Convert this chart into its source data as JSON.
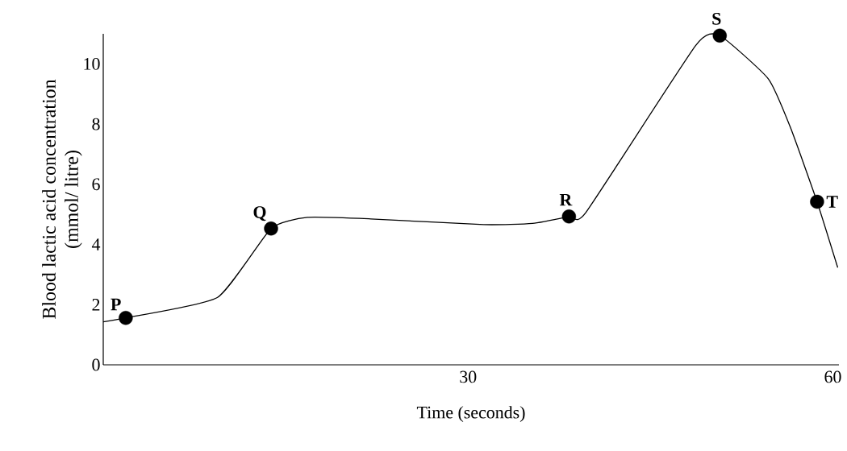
{
  "chart_data": {
    "type": "line",
    "xlabel": "Time (seconds)",
    "ylabel": "Blood lactic acid concentration (mmol/ litre)",
    "xlim": [
      0,
      60.5
    ],
    "xticks": [
      30,
      60
    ],
    "ylim": [
      0,
      11
    ],
    "yticks": [
      0,
      2,
      4,
      6,
      8,
      10
    ],
    "grid": false,
    "series": [
      {
        "type": "line",
        "color": "#000000",
        "line_style": "solid",
        "x": [
          0,
          1.85,
          9.4,
          13.8,
          16.8,
          22,
          31.3,
          35.3,
          38.3,
          39.7,
          48.7,
          50.7,
          54.7,
          56.5,
          58.7,
          60.4
        ],
        "values": [
          1.43,
          1.56,
          2.24,
          4.53,
          4.9,
          4.85,
          4.66,
          4.7,
          4.93,
          5.07,
          10.6,
          10.94,
          9.5,
          7.9,
          5.42,
          3.23
        ]
      },
      {
        "type": "scatter",
        "color": "#000000",
        "marker": "circle",
        "x": [
          1.85,
          13.8,
          38.3,
          50.7,
          58.7
        ],
        "values": [
          1.56,
          4.53,
          4.93,
          10.94,
          5.42
        ]
      }
    ],
    "annotations": [
      {
        "text": "P",
        "x": 1.85,
        "y": 1.56
      },
      {
        "text": "Q",
        "x": 13.8,
        "y": 4.53
      },
      {
        "text": "R",
        "x": 38.3,
        "y": 4.93
      },
      {
        "text": "S",
        "x": 50.7,
        "y": 10.94
      },
      {
        "text": "T",
        "x": 58.7,
        "y": 5.42
      }
    ]
  }
}
